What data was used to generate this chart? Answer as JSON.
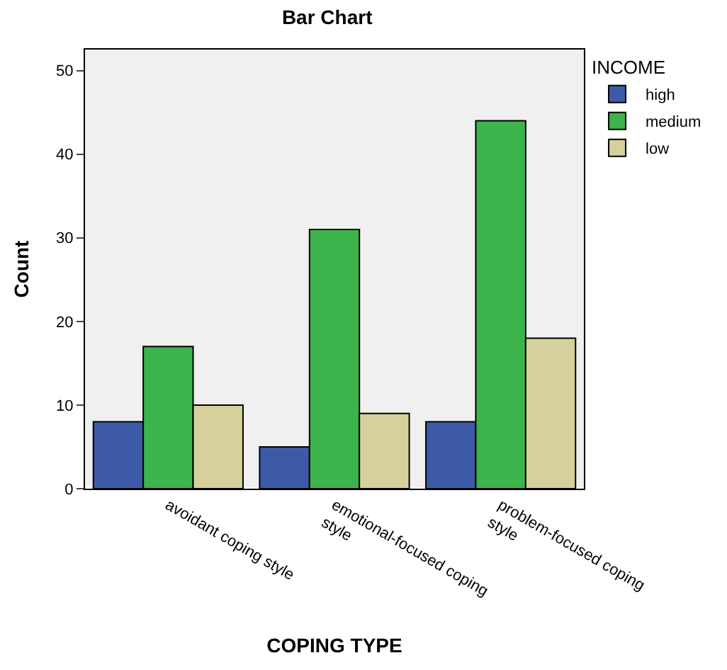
{
  "chart_data": {
    "type": "bar",
    "title": "Bar Chart",
    "xlabel": "COPING TYPE",
    "ylabel": "Count",
    "legend_title": "INCOME",
    "categories": [
      "avoidant coping style",
      "emotional-focused coping style",
      "problem-focused coping style"
    ],
    "series": [
      {
        "name": "high",
        "color": "#3d5aa6",
        "values": [
          8,
          5,
          8
        ]
      },
      {
        "name": "medium",
        "color": "#3cb44b",
        "values": [
          17,
          31,
          44
        ]
      },
      {
        "name": "low",
        "color": "#d6d19c",
        "values": [
          10,
          9,
          18
        ]
      }
    ],
    "ylim": [
      0,
      52.5
    ],
    "yticks": [
      0,
      10,
      20,
      30,
      40,
      50
    ],
    "grid": false,
    "legend": "top right"
  }
}
